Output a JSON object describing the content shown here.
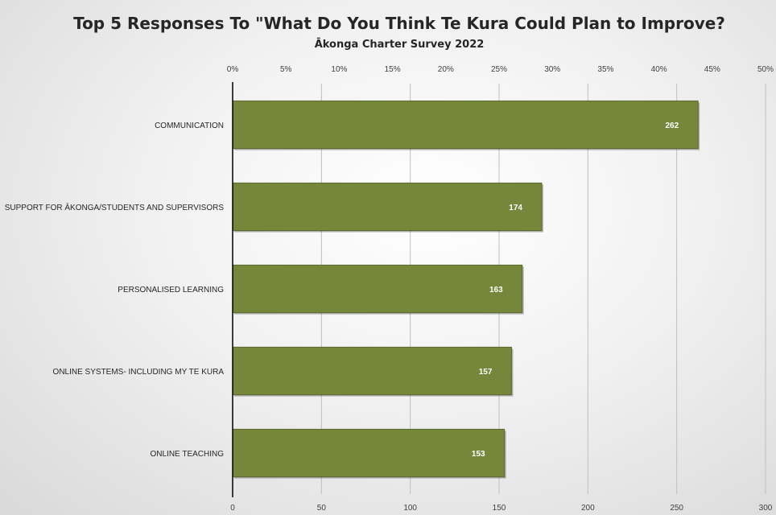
{
  "chart_data": {
    "type": "bar",
    "orientation": "horizontal",
    "title": "Top 5 Responses To \"What Do You Think Te Kura Could Plan to Improve?",
    "subtitle": "Ākonga Charter Survey 2022",
    "categories": [
      "COMMUNICATION",
      "SUPPORT FOR ĀKONGA/STUDENTS AND SUPERVISORS",
      "PERSONALISED LEARNING",
      "ONLINE SYSTEMS- INCLUDING MY TE KURA",
      "ONLINE TEACHING"
    ],
    "values": [
      262,
      174,
      163,
      157,
      153
    ],
    "data_labels": [
      "262",
      "174",
      "163",
      "157",
      "153"
    ],
    "xlim": [
      0,
      300
    ],
    "x_ticks": [
      0,
      50,
      100,
      150,
      200,
      250,
      300
    ],
    "x_tick_labels": [
      "0",
      "50",
      "100",
      "150",
      "200",
      "250",
      "300"
    ],
    "secondary_axis": {
      "position": "top",
      "lim": [
        0,
        0.5
      ],
      "ticks": [
        0,
        0.05,
        0.1,
        0.15,
        0.2,
        0.25,
        0.3,
        0.35,
        0.4,
        0.45,
        0.5
      ],
      "tick_labels": [
        "0%",
        "5%",
        "10%",
        "15%",
        "20%",
        "25%",
        "30%",
        "35%",
        "40%",
        "45%",
        "50%"
      ]
    },
    "grid": true,
    "legend": "none",
    "bar_color": "#76863a",
    "bar_edge_color": "#5c6a2c",
    "gridline_color": "#bfbfbf"
  }
}
